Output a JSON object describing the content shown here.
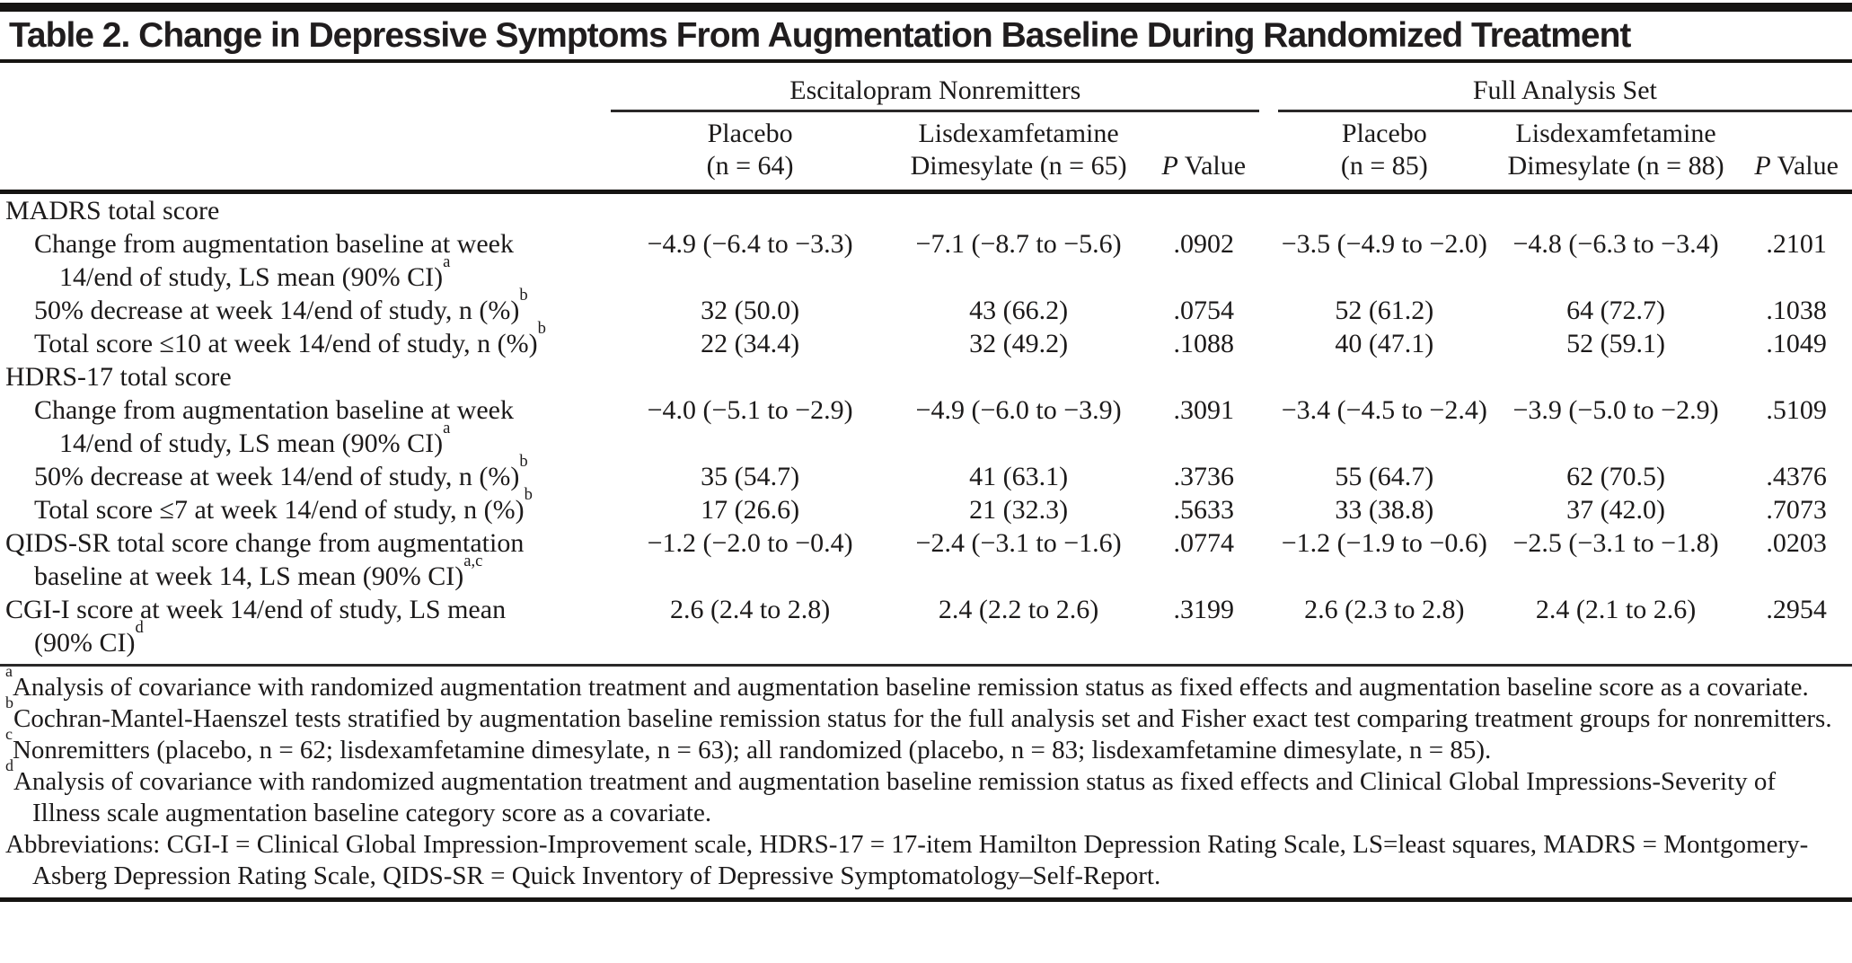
{
  "title": "Table 2. Change in Depressive Symptoms From Augmentation Baseline During Randomized Treatment",
  "table": {
    "groups": [
      {
        "label": "Escitalopram Nonremitters",
        "columns": [
          {
            "lines": [
              "Placebo",
              "(n = 64)"
            ],
            "italic_first_letter": false
          },
          {
            "lines": [
              "Lisdexamfetamine",
              "Dimesylate (n = 65)"
            ],
            "italic_first_letter": false
          },
          {
            "lines": [
              "P Value"
            ],
            "italic_first_letter": true
          }
        ]
      },
      {
        "label": "Full Analysis Set",
        "columns": [
          {
            "lines": [
              "Placebo",
              "(n = 85)"
            ],
            "italic_first_letter": false
          },
          {
            "lines": [
              "Lisdexamfetamine",
              "Dimesylate (n = 88)"
            ],
            "italic_first_letter": false
          },
          {
            "lines": [
              "P Value"
            ],
            "italic_first_letter": true
          }
        ]
      }
    ],
    "rows": [
      {
        "type": "section",
        "label_lines": [
          "MADRS total score"
        ],
        "sup": "",
        "cells": null
      },
      {
        "type": "sub",
        "label_lines": [
          "Change from augmentation baseline at week",
          "14/end of study, LS mean (90% CI)"
        ],
        "sup": "a",
        "cells": [
          "−4.9 (−6.4 to −3.3)",
          "−7.1 (−8.7 to −5.6)",
          ".0902",
          "−3.5 (−4.9 to −2.0)",
          "−4.8 (−6.3 to −3.4)",
          ".2101"
        ]
      },
      {
        "type": "sub",
        "label_lines": [
          "50% decrease at week 14/end of study, n (%)"
        ],
        "sup": "b",
        "cells": [
          "32 (50.0)",
          "43 (66.2)",
          ".0754",
          "52 (61.2)",
          "64 (72.7)",
          ".1038"
        ]
      },
      {
        "type": "sub",
        "label_lines": [
          "Total score ≤10 at week 14/end of study, n (%)"
        ],
        "sup": "b",
        "cells": [
          "22 (34.4)",
          "32 (49.2)",
          ".1088",
          "40 (47.1)",
          "52 (59.1)",
          ".1049"
        ]
      },
      {
        "type": "section",
        "label_lines": [
          "HDRS-17 total score"
        ],
        "sup": "",
        "cells": null
      },
      {
        "type": "sub",
        "label_lines": [
          "Change from augmentation baseline at week",
          "14/end of study, LS mean (90% CI)"
        ],
        "sup": "a",
        "cells": [
          "−4.0 (−5.1 to −2.9)",
          "−4.9 (−6.0 to −3.9)",
          ".3091",
          "−3.4 (−4.5 to −2.4)",
          "−3.9 (−5.0 to −2.9)",
          ".5109"
        ]
      },
      {
        "type": "sub",
        "label_lines": [
          "50% decrease at week 14/end of study, n (%)"
        ],
        "sup": "b",
        "cells": [
          "35 (54.7)",
          "41 (63.1)",
          ".3736",
          "55 (64.7)",
          "62 (70.5)",
          ".4376"
        ]
      },
      {
        "type": "sub",
        "label_lines": [
          "Total score ≤7 at week 14/end of study, n (%)"
        ],
        "sup": "b",
        "cells": [
          "17 (26.6)",
          "21 (32.3)",
          ".5633",
          "33 (38.8)",
          "37 (42.0)",
          ".7073"
        ]
      },
      {
        "type": "top",
        "label_lines": [
          "QIDS-SR total score change from augmentation",
          "baseline at week 14, LS mean (90% CI)"
        ],
        "sup": "a,c",
        "cells": [
          "−1.2 (−2.0 to −0.4)",
          "−2.4 (−3.1 to −1.6)",
          ".0774",
          "−1.2 (−1.9 to −0.6)",
          "−2.5 (−3.1 to −1.8)",
          ".0203"
        ]
      },
      {
        "type": "top",
        "label_lines": [
          "CGI-I score  at week 14/end of study, LS mean",
          "(90% CI)"
        ],
        "sup": "d",
        "cells": [
          "2.6 (2.4 to 2.8)",
          "2.4 (2.2 to 2.6)",
          ".3199",
          "2.6 (2.3 to 2.8)",
          "2.4 (2.1 to 2.6)",
          ".2954"
        ]
      }
    ]
  },
  "footnotes": [
    {
      "sup": "a",
      "text": "Analysis of covariance with randomized augmentation treatment and augmentation baseline remission status as fixed effects and augmentation baseline score as a covariate."
    },
    {
      "sup": "b",
      "text": "Cochran-Mantel-Haenszel tests stratified by augmentation baseline remission status for the full analysis set and Fisher exact test comparing treatment groups for nonremitters."
    },
    {
      "sup": "c",
      "text": "Nonremitters (placebo, n = 62; lisdexamfetamine dimesylate, n = 63); all randomized (placebo, n = 83; lisdexamfetamine dimesylate, n = 85)."
    },
    {
      "sup": "d",
      "text": "Analysis of covariance with randomized augmentation treatment and augmentation baseline remission status as fixed effects and Clinical Global Impressions-Severity of Illness scale augmentation baseline category score as a covariate."
    },
    {
      "sup": "",
      "text": "Abbreviations: CGI-I = Clinical Global Impression-Improvement scale, HDRS-17 = 17-item Hamilton Depression Rating Scale, LS=least squares, MADRS = Montgomery-Asberg Depression Rating Scale, QIDS-SR = Quick Inventory of Depressive Symptomatology–Self-Report."
    }
  ]
}
